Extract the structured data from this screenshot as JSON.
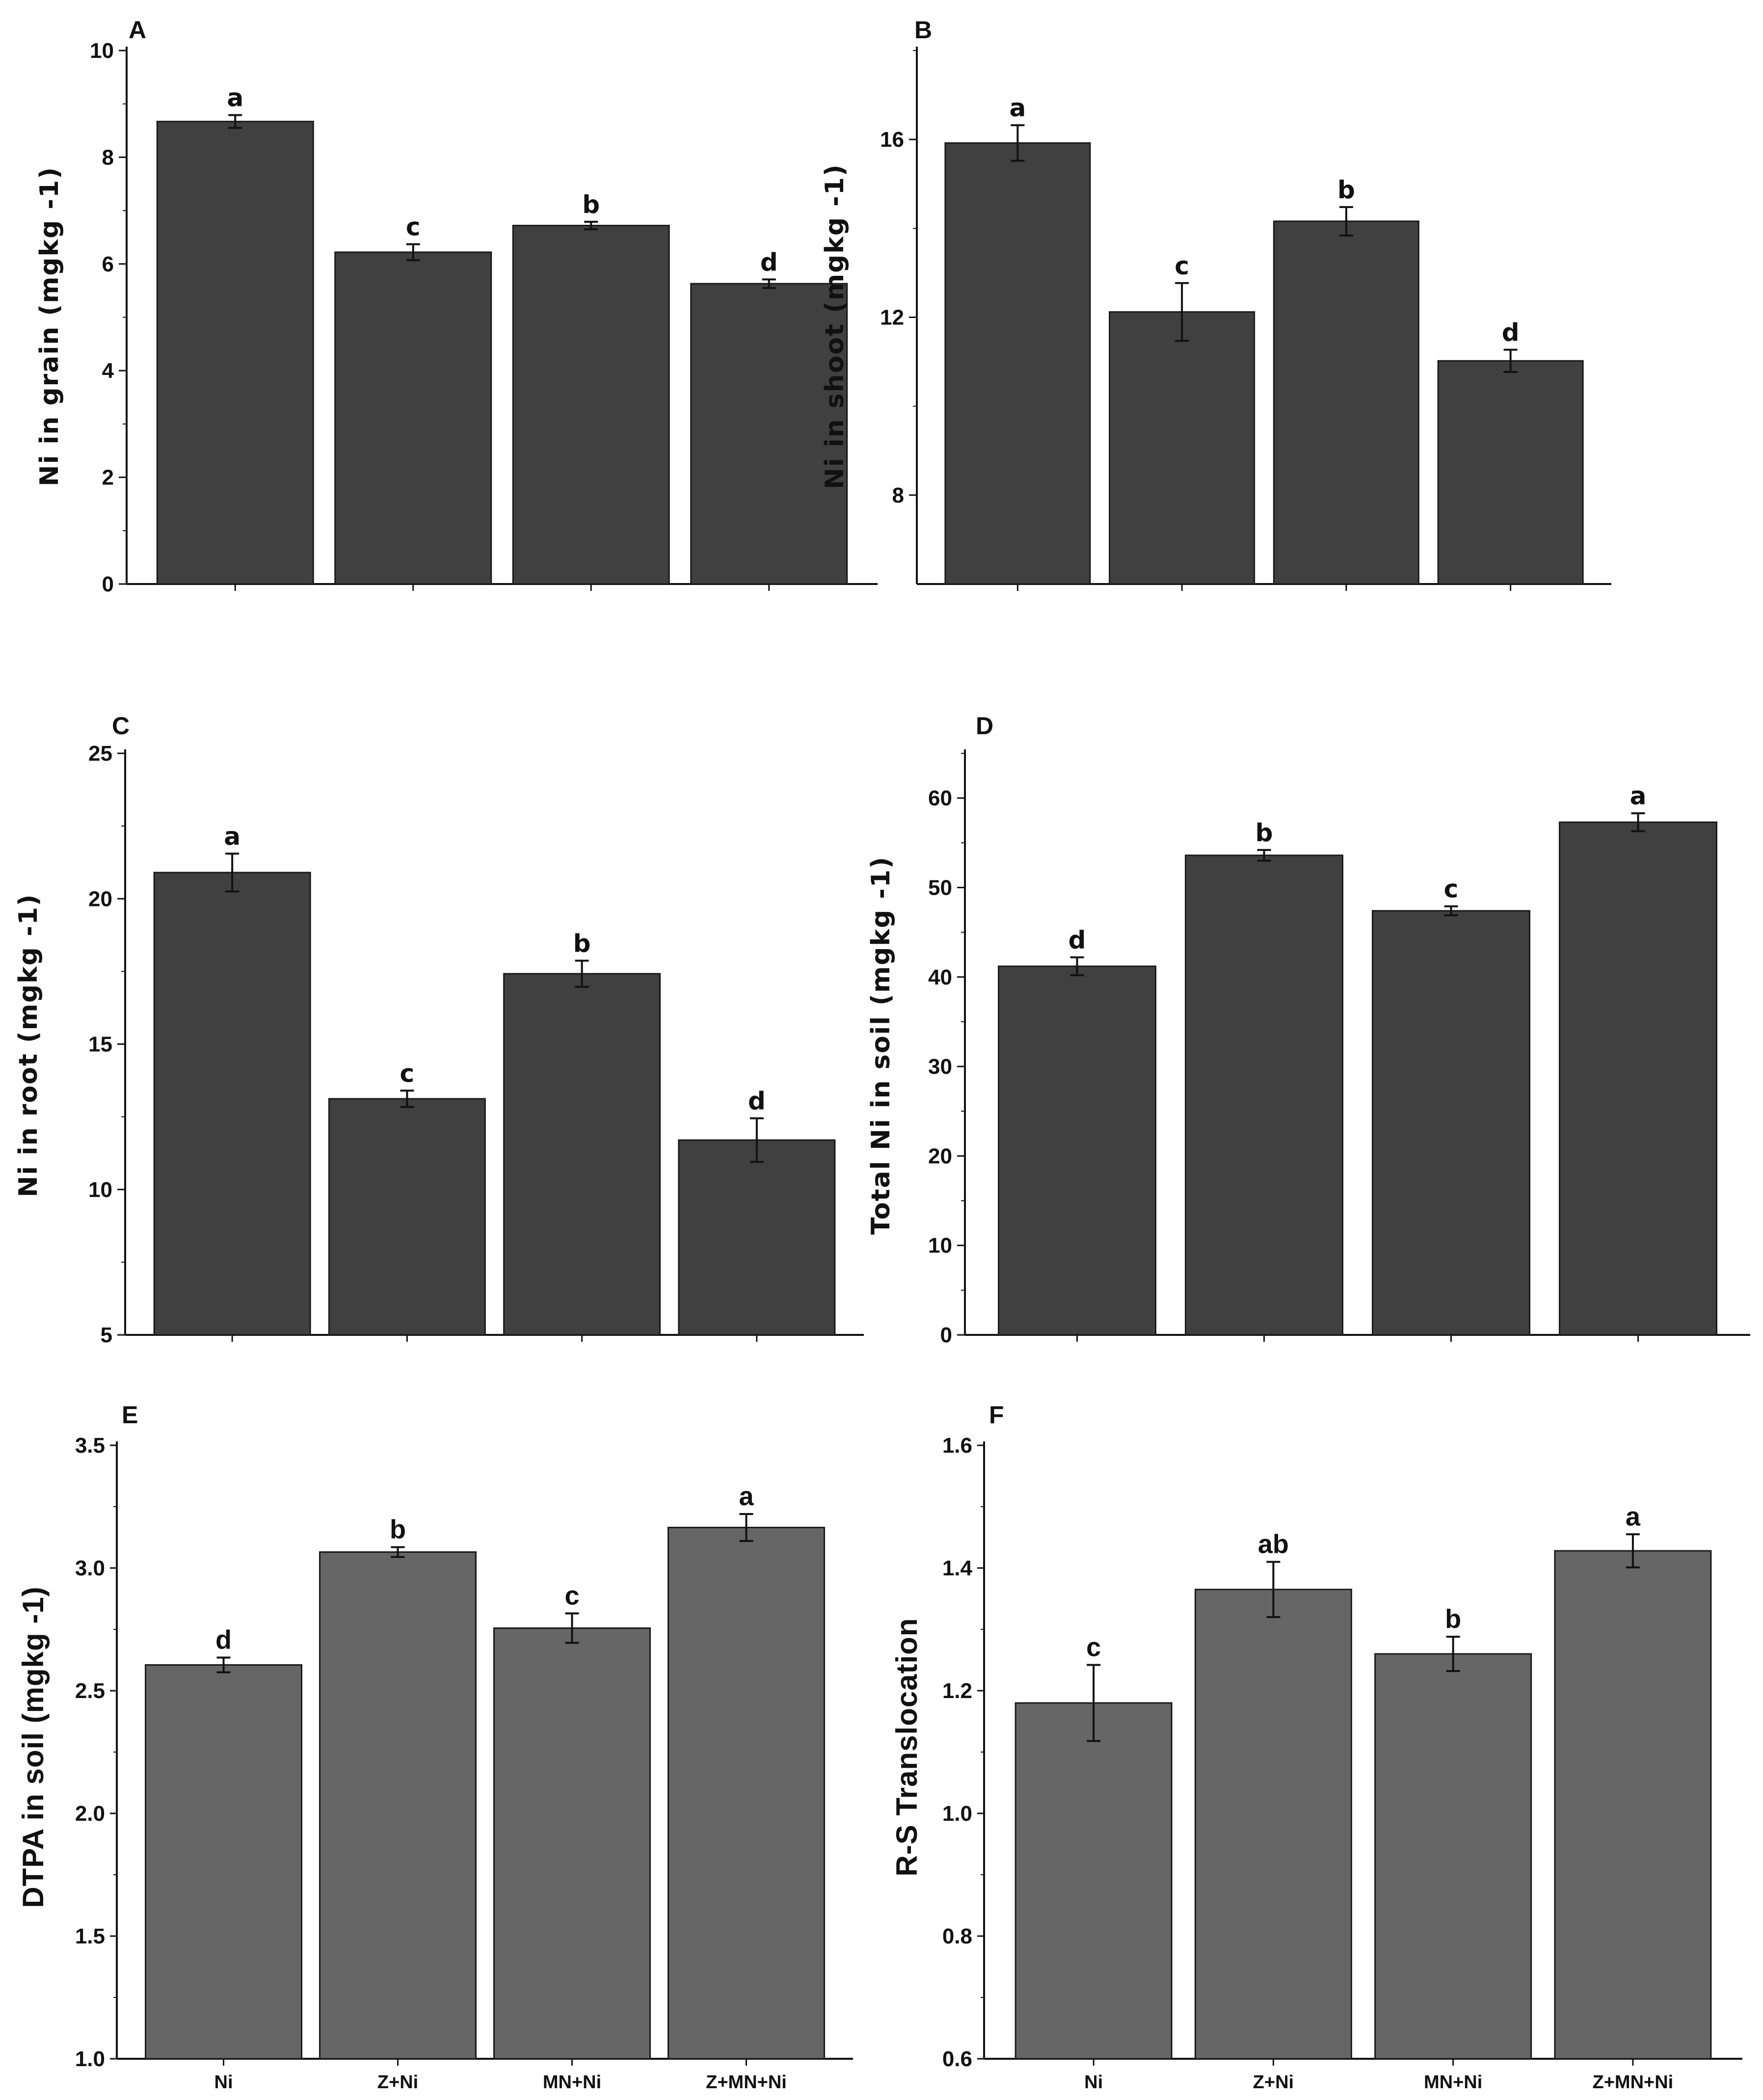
{
  "colors": {
    "bar_dark": "#404040",
    "bar_gray": "#666666",
    "axis": "#111111"
  },
  "chart_data": [
    {
      "type": "bar",
      "panel": "A",
      "ylabel": "Ni in grain (mgkg -1)",
      "ylim": [
        0,
        10
      ],
      "yticks": [
        0,
        2,
        4,
        6,
        8,
        10
      ],
      "ytick_labels": [
        "0",
        "2",
        "4",
        "6",
        "8",
        "10"
      ],
      "categories": [
        "Ni",
        "Z+Ni",
        "MN+Ni",
        "Z+MN+Ni"
      ],
      "show_category_labels": false,
      "values": [
        8.67,
        6.22,
        6.72,
        5.63
      ],
      "errors": [
        0.12,
        0.15,
        0.07,
        0.08
      ],
      "letters": [
        "a",
        "c",
        "b",
        "d"
      ]
    },
    {
      "type": "bar",
      "panel": "B",
      "ylabel": "Ni in shoot (mgkg -1)",
      "ylim": [
        6,
        18
      ],
      "yticks": [
        8,
        12,
        16
      ],
      "ytick_labels": [
        "8",
        "12",
        "16"
      ],
      "categories": [
        "Ni",
        "Z+Ni",
        "MN+Ni",
        "Z+MN+Ni"
      ],
      "show_category_labels": false,
      "values": [
        15.92,
        12.12,
        14.16,
        11.02
      ],
      "errors": [
        0.4,
        0.65,
        0.32,
        0.25
      ],
      "letters": [
        "a",
        "c",
        "b",
        "d"
      ]
    },
    {
      "type": "bar",
      "panel": "C",
      "ylabel": "Ni in root (mgkg -1)",
      "ylim": [
        5,
        25
      ],
      "yticks": [
        5,
        10,
        15,
        20,
        25
      ],
      "ytick_labels": [
        "5",
        "10",
        "15",
        "20",
        "25"
      ],
      "categories": [
        "Ni",
        "Z+Ni",
        "MN+Ni",
        "Z+MN+Ni"
      ],
      "show_category_labels": false,
      "values": [
        20.9,
        13.12,
        17.42,
        11.7
      ],
      "errors": [
        0.65,
        0.28,
        0.45,
        0.75
      ],
      "letters": [
        "a",
        "c",
        "b",
        "d"
      ]
    },
    {
      "type": "bar",
      "panel": "D",
      "ylabel": "Total Ni in soil (mgkg -1)",
      "ylim": [
        0,
        65
      ],
      "yticks": [
        0,
        10,
        20,
        30,
        40,
        50,
        60
      ],
      "ytick_labels": [
        "0",
        "10",
        "20",
        "30",
        "40",
        "50",
        "60"
      ],
      "categories": [
        "Ni",
        "Z+Ni",
        "MN+Ni",
        "Z+MN+Ni"
      ],
      "show_category_labels": false,
      "values": [
        41.2,
        53.6,
        47.4,
        57.3
      ],
      "errors": [
        1.0,
        0.6,
        0.5,
        1.0
      ],
      "letters": [
        "d",
        "b",
        "c",
        "a"
      ]
    },
    {
      "type": "bar",
      "panel": "E",
      "ylabel": "DTPA in soil (mgkg -1)",
      "ylim": [
        1.0,
        3.5
      ],
      "yticks": [
        1.0,
        1.5,
        2.0,
        2.5,
        3.0,
        3.5
      ],
      "ytick_labels": [
        "1.0",
        "1.5",
        "2.0",
        "2.5",
        "3.0",
        "3.5"
      ],
      "categories": [
        "Ni",
        "Z+Ni",
        "MN+Ni",
        "Z+MN+Ni"
      ],
      "show_category_labels": true,
      "values": [
        2.605,
        3.065,
        2.755,
        3.165
      ],
      "errors": [
        0.03,
        0.02,
        0.06,
        0.055
      ],
      "letters": [
        "d",
        "b",
        "c",
        "a"
      ]
    },
    {
      "type": "bar",
      "panel": "F",
      "ylabel": "R-S Translocation",
      "ylim": [
        0.6,
        1.6
      ],
      "yticks": [
        0.6,
        0.8,
        1.0,
        1.2,
        1.4,
        1.6
      ],
      "ytick_labels": [
        "0.6",
        "0.8",
        "1.0",
        "1.2",
        "1.4",
        "1.6"
      ],
      "categories": [
        "Ni",
        "Z+Ni",
        "MN+Ni",
        "Z+MN+Ni"
      ],
      "show_category_labels": true,
      "values": [
        1.18,
        1.365,
        1.26,
        1.428
      ],
      "errors": [
        0.062,
        0.045,
        0.028,
        0.027
      ],
      "letters": [
        "c",
        "ab",
        "b",
        "a"
      ]
    }
  ]
}
